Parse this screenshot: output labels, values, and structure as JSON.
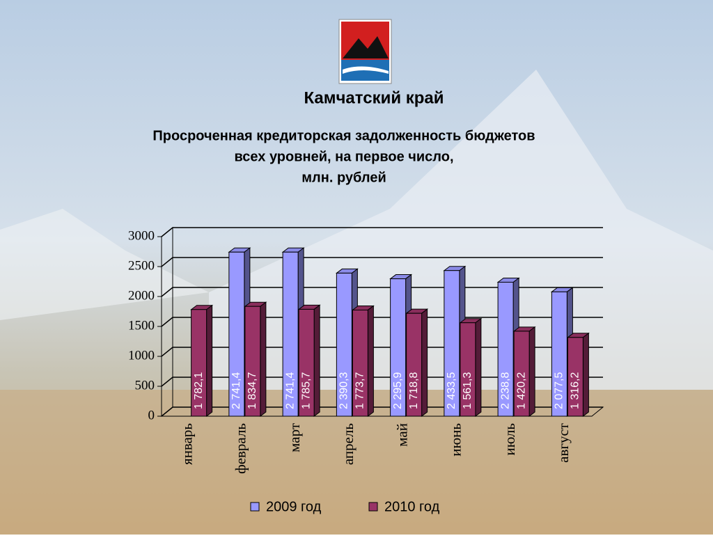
{
  "header": "Камчатский край",
  "chart_data": {
    "type": "bar3d",
    "title": [
      "Просроченная кредиторская задолженность бюджетов",
      "всех уровней, на первое число,",
      "млн. рублей"
    ],
    "categories": [
      "январь",
      "февраль",
      "март",
      "апрель",
      "май",
      "июнь",
      "июль",
      "август"
    ],
    "series": [
      {
        "name": "2009 год",
        "color": "#9999ff",
        "values": [
          null,
          2741.4,
          2741.4,
          2390.3,
          2295.9,
          2433.5,
          2238.8,
          2077.5
        ],
        "value_labels": [
          null,
          "2 741,4",
          "2 741,4",
          "2 390,3",
          "2 295,9",
          "2 433,5",
          "2 238,8",
          "2 077,5"
        ]
      },
      {
        "name": "2010 год",
        "color": "#993366",
        "values": [
          1782.1,
          1834.7,
          1785.7,
          1773.7,
          1718.8,
          1561.3,
          1420.2,
          1316.2
        ],
        "value_labels": [
          "1 782,1",
          "1 834,7",
          "1 785,7",
          "1 773,7",
          "1 718,8",
          "1 561,3",
          "1 420,2",
          "1 316,2"
        ]
      }
    ],
    "ylim": [
      0,
      3000
    ],
    "yticks": [
      0,
      500,
      1000,
      1500,
      2000,
      2500,
      3000
    ],
    "grid": true,
    "legend": "bottom"
  }
}
